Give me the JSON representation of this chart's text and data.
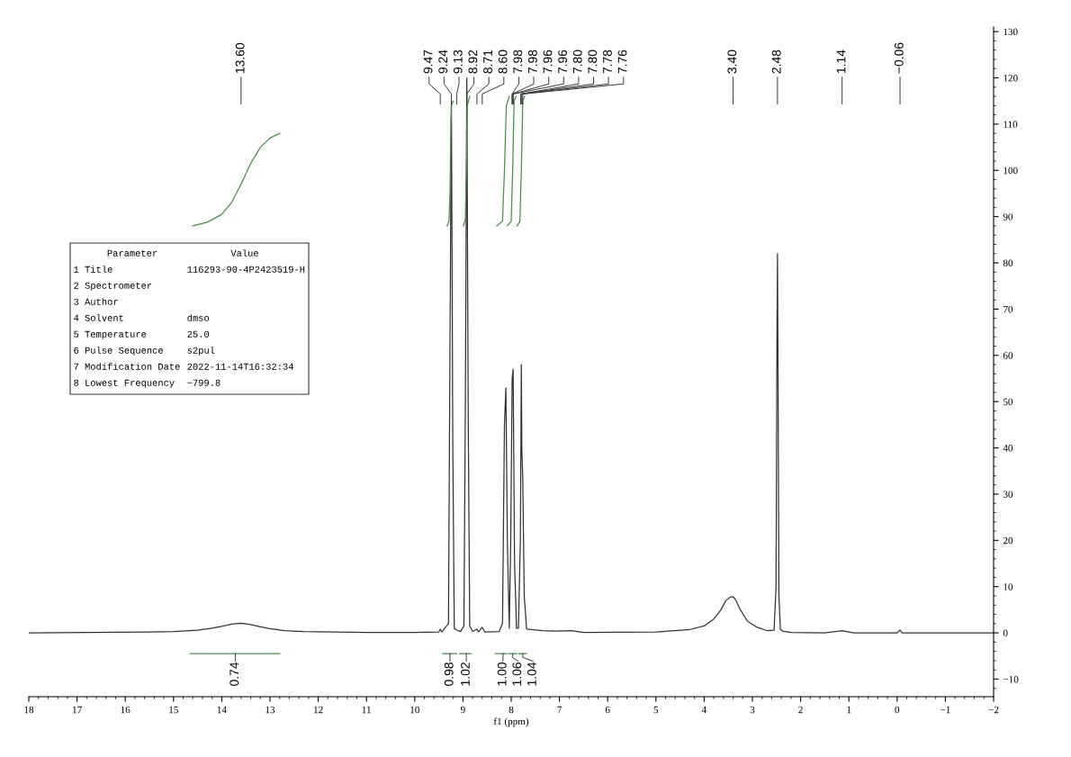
{
  "chart_data": {
    "type": "line",
    "xlabel": "f1 (ppm)",
    "xlim": [
      18,
      -2
    ],
    "xticks": [
      18,
      17,
      16,
      15,
      14,
      13,
      12,
      11,
      10,
      9,
      8,
      7,
      6,
      5,
      4,
      3,
      2,
      1,
      0,
      {
        "value": -1,
        "label": "−1"
      },
      {
        "value": -2,
        "label": "−2"
      }
    ],
    "ylim": [
      -13.8,
      131
    ],
    "yticks": [
      {
        "value": -10,
        "label": "−10"
      },
      0,
      10,
      20,
      30,
      40,
      50,
      60,
      70,
      80,
      90,
      100,
      110,
      120,
      130
    ],
    "grid": false,
    "legend": false,
    "marker": "none",
    "line_style": "solid",
    "series": [
      {
        "color": "#333333",
        "x": [
          18,
          15.5,
          15,
          14.5,
          14.2,
          14.0,
          13.8,
          13.6,
          13.4,
          13.2,
          13.0,
          12.7,
          12.3,
          11,
          10,
          9.5,
          9.47,
          9.44,
          9.3,
          9.27,
          9.24,
          9.21,
          9.18,
          9.13,
          9.05,
          8.98,
          8.95,
          8.92,
          8.89,
          8.86,
          8.8,
          8.71,
          8.68,
          8.6,
          8.55,
          8.25,
          8.18,
          8.14,
          8.11,
          8.08,
          8.04,
          8.01,
          7.98,
          7.96,
          7.93,
          7.89,
          7.85,
          7.81,
          7.79,
          7.78,
          7.76,
          7.73,
          7.68,
          7.35,
          7.1,
          6.75,
          6.5,
          5,
          4.3,
          4.0,
          3.8,
          3.65,
          3.55,
          3.45,
          3.4,
          3.35,
          3.25,
          3.1,
          2.9,
          2.7,
          2.55,
          2.51,
          2.49,
          2.48,
          2.47,
          2.45,
          2.42,
          2.38,
          2.2,
          1.5,
          1.2,
          1.14,
          1.05,
          0.9,
          0.0,
          -0.06,
          -0.1,
          -2
        ],
        "values": [
          0,
          0.2,
          0.3,
          0.6,
          1.0,
          1.4,
          1.9,
          2.1,
          1.8,
          1.3,
          0.9,
          0.5,
          0.3,
          0.1,
          0.1,
          0.2,
          0.8,
          0.2,
          2,
          60,
          115,
          40,
          1,
          0.6,
          0.3,
          1.5,
          50,
          120,
          45,
          1.5,
          0.3,
          0.8,
          0.2,
          1.2,
          0.2,
          0.3,
          2,
          45,
          53,
          20,
          1,
          20,
          55,
          57,
          15,
          1,
          1,
          20,
          58,
          40,
          33,
          8,
          0.8,
          0.5,
          0.4,
          0.5,
          0.1,
          0.2,
          0.7,
          1.5,
          3,
          5,
          7,
          7.8,
          7.8,
          7.2,
          5,
          2.5,
          1.2,
          0.5,
          0.6,
          10,
          65,
          82,
          60,
          8,
          0.8,
          0.4,
          0.1,
          0,
          0.4,
          0.5,
          0.3,
          0,
          0,
          0.6,
          0,
          0
        ]
      },
      {
        "color": "#4a8f4a",
        "x": [
          14.6,
          14.3,
          14.0,
          13.8,
          13.6,
          13.4,
          13.2,
          13.0,
          12.8
        ],
        "values": [
          88,
          88.8,
          90.5,
          93,
          97,
          101.5,
          105,
          107,
          108
        ]
      },
      {
        "color": "#4a8f4a",
        "x": [
          9.33,
          9.29,
          9.27,
          9.25,
          9.24,
          9.2
        ],
        "values": [
          88,
          89,
          95,
          110,
          114,
          115
        ]
      },
      {
        "color": "#4a8f4a",
        "x": [
          8.99,
          8.95,
          8.93,
          8.91,
          8.86
        ],
        "values": [
          88,
          89.5,
          100,
          114,
          116
        ]
      },
      {
        "color": "#4a8f4a",
        "x": [
          8.3,
          8.18,
          8.14,
          8.1,
          8.04
        ],
        "values": [
          88,
          89,
          100,
          114,
          116
        ]
      },
      {
        "color": "#4a8f4a",
        "x": [
          8.08,
          8.0,
          7.97,
          7.94,
          7.9
        ],
        "values": [
          88,
          89,
          100,
          115,
          116
        ]
      },
      {
        "color": "#4a8f4a",
        "x": [
          7.88,
          7.82,
          7.79,
          7.76,
          7.72
        ],
        "values": [
          88,
          89,
          100,
          115,
          116
        ]
      },
      {
        "color": "#4a8f4a",
        "x": [
          14.65,
          12.8
        ],
        "values": [
          -4.5,
          -4.5
        ]
      },
      {
        "color": "#4a8f4a",
        "x": [
          9.42,
          9.13
        ],
        "values": [
          -4.5,
          -4.5
        ]
      },
      {
        "color": "#4a8f4a",
        "x": [
          9.07,
          8.83
        ],
        "values": [
          -4.5,
          -4.5
        ]
      },
      {
        "color": "#4a8f4a",
        "x": [
          8.33,
          8.09
        ],
        "values": [
          -4.5,
          -4.5
        ]
      },
      {
        "color": "#4a8f4a",
        "x": [
          8.05,
          7.88
        ],
        "values": [
          -4.5,
          -4.5
        ]
      },
      {
        "color": "#4a8f4a",
        "x": [
          7.84,
          7.68
        ],
        "values": [
          -4.5,
          -4.5
        ]
      }
    ],
    "annotations": [
      {
        "text": "13.60",
        "x": 13.6
      },
      {
        "text": "9.47",
        "x": 9.47
      },
      {
        "text": "9.24",
        "x": 9.24
      },
      {
        "text": "9.13",
        "x": 9.13
      },
      {
        "text": "8.92",
        "x": 8.92
      },
      {
        "text": "8.71",
        "x": 8.71
      },
      {
        "text": "8.60",
        "x": 8.6
      },
      {
        "text": "7.98",
        "x": 7.98
      },
      {
        "text": "7.98",
        "x": 7.98
      },
      {
        "text": "7.96",
        "x": 7.96
      },
      {
        "text": "7.96",
        "x": 7.96
      },
      {
        "text": "7.80",
        "x": 7.8
      },
      {
        "text": "7.80",
        "x": 7.8
      },
      {
        "text": "7.78",
        "x": 7.78
      },
      {
        "text": "7.76",
        "x": 7.76
      },
      {
        "text": "3.40",
        "x": 3.4
      },
      {
        "text": "2.48",
        "x": 2.48
      },
      {
        "text": "1.14",
        "x": 1.14
      },
      {
        "text": "−0.06",
        "x": -0.06
      },
      {
        "text": "0.74",
        "x": 13.72,
        "y": -4.5
      },
      {
        "text": "0.98",
        "x": 9.27,
        "y": -4.5
      },
      {
        "text": "1.02",
        "x": 8.93,
        "y": -4.5
      },
      {
        "text": "1.00",
        "x": 8.17,
        "y": -4.5
      },
      {
        "text": "1.06",
        "x": 7.97,
        "y": -4.5
      },
      {
        "text": "1.04",
        "x": 7.76,
        "y": -4.5
      },
      "Parameter\tValue",
      "1 Title\t116293-90-4P2423519-H",
      "2 Spectrometer",
      "3 Author",
      "4 Solvent\tdmso",
      "5 Temperature\t25.0",
      "6 Pulse Sequence\ts2pul",
      "7 Modification Date\t2022-11-14T16:32:34",
      "8 Lowest Frequency\t−799.8"
    ]
  }
}
